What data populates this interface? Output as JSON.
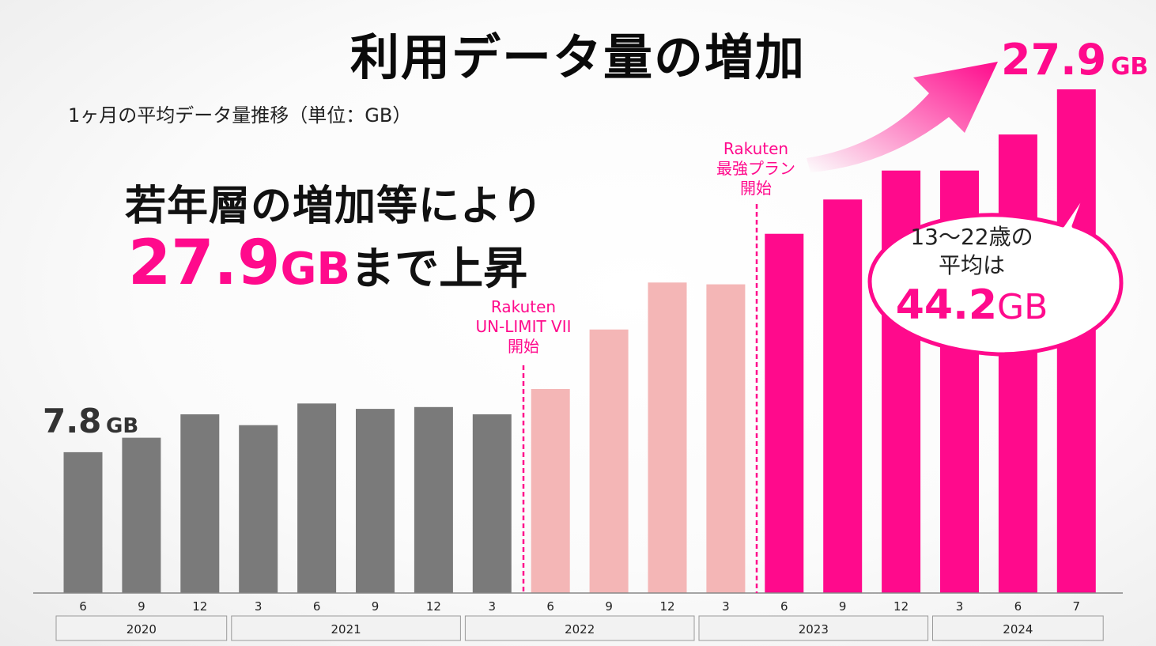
{
  "title": "利用データ量の増加",
  "subtitle": "1ヶ月の平均データ量推移（単位：GB）",
  "headline": {
    "line1": "若年層の増加等により",
    "value": "27.9",
    "unit": "GB",
    "rest": "まで上昇"
  },
  "first_label": {
    "value": "7.8",
    "unit": "GB"
  },
  "last_label": {
    "value": "27.9",
    "unit": "GB"
  },
  "events": [
    {
      "lines": [
        "Rakuten",
        "UN-LIMIT VII",
        "開始"
      ]
    },
    {
      "lines": [
        "Rakuten",
        "最強プラン",
        "開始"
      ]
    }
  ],
  "bubble": {
    "line1": "13～22歳の",
    "line2": "平均は",
    "value": "44.2",
    "unit": "GB"
  },
  "colors": {
    "gray": "#7a7a7a",
    "light_pink": "#f4b6b6",
    "magenta": "#ff0a8c"
  },
  "chart_data": {
    "type": "bar",
    "categories": [
      "6",
      "9",
      "12",
      "3",
      "6",
      "9",
      "12",
      "3",
      "6",
      "9",
      "12",
      "3",
      "6",
      "9",
      "12",
      "3",
      "6",
      "7"
    ],
    "years": [
      {
        "label": "2020",
        "count": 3
      },
      {
        "label": "2021",
        "count": 4
      },
      {
        "label": "2022",
        "count": 4
      },
      {
        "label": "2023",
        "count": 4
      },
      {
        "label": "2024",
        "count": 3
      }
    ],
    "values": [
      7.8,
      8.6,
      9.9,
      9.3,
      10.5,
      10.2,
      10.3,
      9.9,
      11.3,
      14.6,
      17.2,
      17.1,
      19.9,
      21.8,
      23.4,
      23.4,
      25.4,
      27.9
    ],
    "groups": [
      "gray",
      "gray",
      "gray",
      "gray",
      "gray",
      "gray",
      "gray",
      "gray",
      "light_pink",
      "light_pink",
      "light_pink",
      "light_pink",
      "magenta",
      "magenta",
      "magenta",
      "magenta",
      "magenta",
      "magenta"
    ],
    "ylim": [
      0,
      27.9
    ],
    "grid": false
  }
}
